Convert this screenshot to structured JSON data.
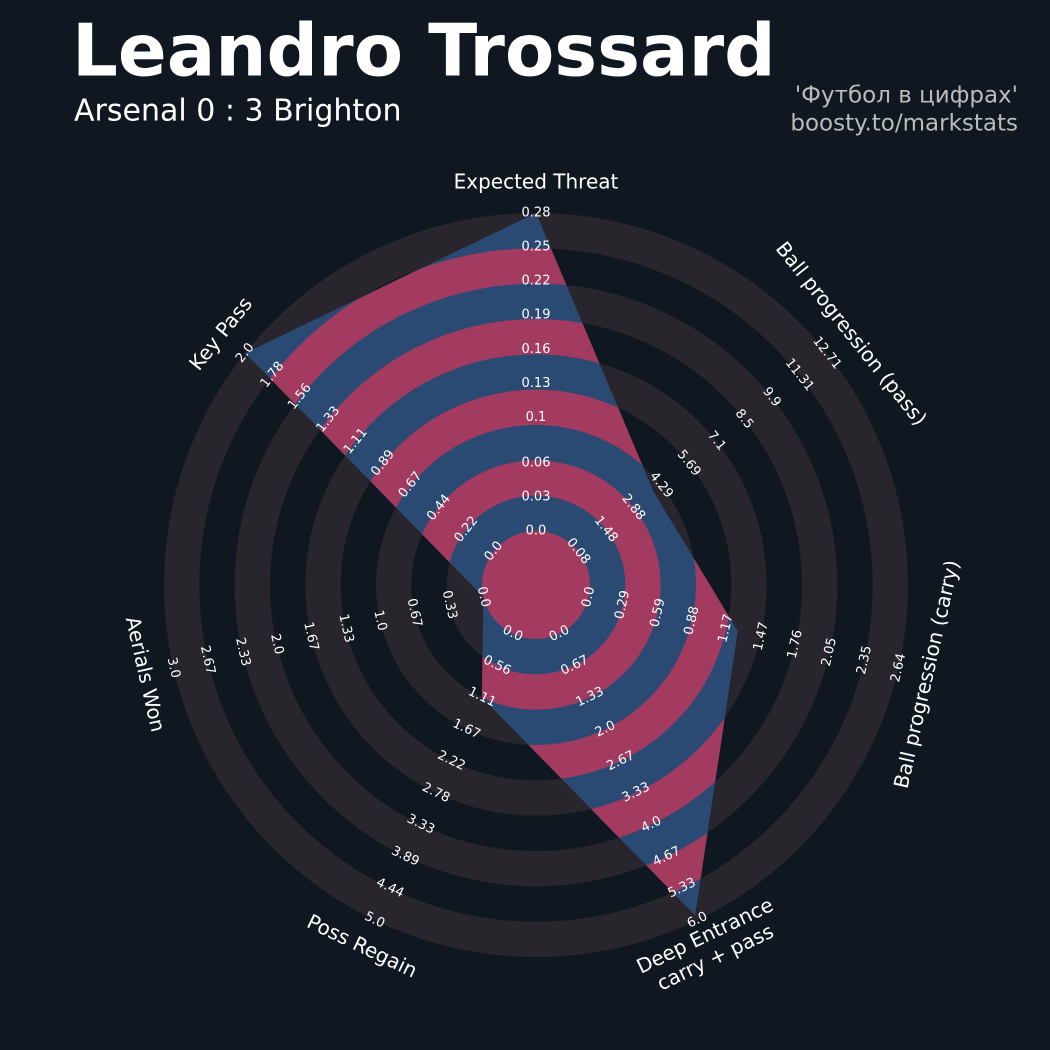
{
  "chart_data": {
    "type": "radar",
    "title": "Leandro Trossard",
    "subtitle": "Arsenal 0 : 3 Brighton",
    "credits": [
      "'Футбол в цифрах'",
      "boosty.to/markstats"
    ],
    "ring_color": "#28252c",
    "params": [
      {
        "label": "Expected Threat",
        "lim": [
          0,
          0.28
        ],
        "ticks": [
          {
            "value": 0,
            "label": "0.0"
          },
          0.03,
          0.06,
          0.1,
          0.13,
          0.16,
          0.19,
          0.22,
          0.25,
          0.28
        ]
      },
      {
        "label": "Ball progression (pass)",
        "lim": [
          0.08,
          12.71
        ],
        "ticks": [
          0.08,
          1.48,
          2.88,
          4.29,
          5.69,
          7.1,
          8.5,
          9.9,
          11.31,
          12.71
        ]
      },
      {
        "label": "Ball progression (carry)",
        "lim": [
          0,
          2.64
        ],
        "ticks": [
          {
            "value": 0,
            "label": "0.0"
          },
          0.29,
          0.59,
          0.88,
          1.17,
          1.47,
          1.76,
          2.05,
          2.35,
          2.64
        ]
      },
      {
        "label": "Deep Entrance\ncarry + pass",
        "lim": [
          0,
          6
        ],
        "ticks": [
          {
            "value": 0,
            "label": "0.0"
          },
          0.67,
          1.33,
          {
            "value": 2,
            "label": "2.0"
          },
          2.67,
          3.33,
          {
            "value": 4,
            "label": "4.0"
          },
          4.67,
          5.33,
          {
            "value": 6,
            "label": "6.0"
          }
        ]
      },
      {
        "label": "Poss Regain",
        "lim": [
          0,
          5
        ],
        "ticks": [
          {
            "value": 0,
            "label": "0.0"
          },
          0.56,
          1.11,
          1.67,
          2.22,
          2.78,
          3.33,
          3.89,
          4.44,
          {
            "value": 5,
            "label": "5.0"
          }
        ]
      },
      {
        "label": "Aerials Won",
        "lim": [
          0,
          3
        ],
        "ticks": [
          {
            "value": 0,
            "label": "0.0"
          },
          0.33,
          0.67,
          {
            "value": 1,
            "label": "1.0"
          },
          1.33,
          1.67,
          {
            "value": 2,
            "label": "2.0"
          },
          2.33,
          2.67,
          {
            "value": 3,
            "label": "3.0"
          }
        ]
      },
      {
        "label": "Key Pass",
        "lim": [
          0,
          2
        ],
        "ticks": [
          {
            "value": 0,
            "label": "0.0"
          },
          0.22,
          0.44,
          0.67,
          0.89,
          1.11,
          1.33,
          1.56,
          1.78,
          {
            "value": 2,
            "label": "2.0"
          }
        ]
      }
    ],
    "series": [
      {
        "values": [
          0.28,
          3.9,
          1.27,
          5.9,
          1.11,
          0,
          2.0
        ],
        "color": "#2a4a74",
        "ring_color": "#a33a5f"
      }
    ]
  }
}
